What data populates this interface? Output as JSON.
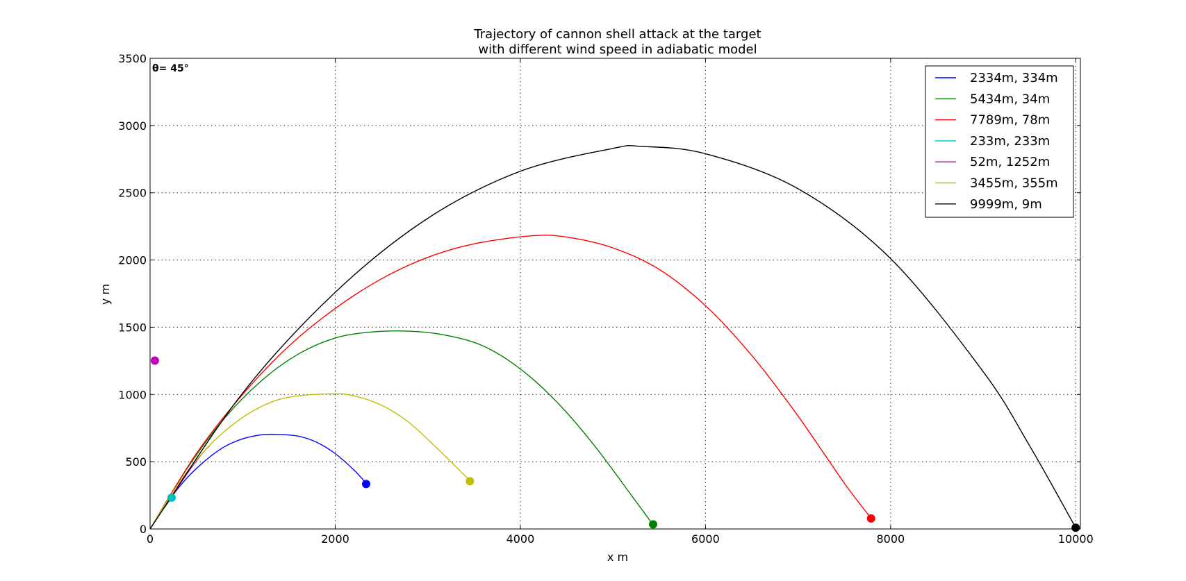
{
  "chart_data": {
    "type": "line",
    "title": [
      "Trajectory of cannon shell attack at the target",
      "with different wind speed in adiabatic model"
    ],
    "xlabel": "x m",
    "ylabel": "y m",
    "xlim": [
      0,
      10050
    ],
    "ylim": [
      0,
      3500
    ],
    "xticks": [
      0,
      2000,
      4000,
      6000,
      8000,
      10000
    ],
    "yticks": [
      0,
      500,
      1000,
      1500,
      2000,
      2500,
      3000,
      3500
    ],
    "grid": true,
    "legend_position": "top-right",
    "annotation": "θ= 45°",
    "series": [
      {
        "name": "2334m, 334m",
        "color": "#0000ff",
        "target": [
          2334,
          334
        ],
        "x": [
          0,
          200,
          400,
          600,
          800,
          1000,
          1200,
          1380,
          1600,
          1800,
          2000,
          2200,
          2334
        ],
        "y": [
          0,
          210,
          380,
          510,
          610,
          670,
          700,
          703,
          690,
          645,
          560,
          440,
          340
        ]
      },
      {
        "name": "5434m, 34m",
        "color": "#008000",
        "target": [
          5434,
          34
        ],
        "x": [
          0,
          400,
          800,
          1200,
          1600,
          2000,
          2400,
          2820,
          3200,
          3600,
          4000,
          4400,
          4800,
          5200,
          5434
        ],
        "y": [
          0,
          450,
          820,
          1100,
          1300,
          1420,
          1465,
          1470,
          1440,
          1360,
          1190,
          940,
          620,
          250,
          30
        ]
      },
      {
        "name": "7789m, 78m",
        "color": "#ff0000",
        "target": [
          7789,
          78
        ],
        "x": [
          0,
          500,
          1000,
          1500,
          2000,
          2500,
          3000,
          3500,
          4120,
          4500,
          5000,
          5500,
          6000,
          6500,
          7000,
          7500,
          7789
        ],
        "y": [
          0,
          560,
          1000,
          1360,
          1640,
          1860,
          2020,
          2120,
          2180,
          2170,
          2090,
          1930,
          1660,
          1290,
          840,
          340,
          80
        ]
      },
      {
        "name": "233m, 233m",
        "color": "#00bfbf",
        "target": [
          233,
          233
        ],
        "x": [
          0,
          100,
          233
        ],
        "y": [
          0,
          105,
          230
        ]
      },
      {
        "name": "52m, 1252m",
        "color": "#bf00bf",
        "target": [
          52,
          1252
        ],
        "x": [
          0,
          150,
          300,
          450,
          600,
          640
        ],
        "y": [
          0,
          160,
          310,
          460,
          590,
          615
        ]
      },
      {
        "name": "3455m, 355m",
        "color": "#bfbf00",
        "target": [
          3455,
          355
        ],
        "x": [
          0,
          300,
          600,
          900,
          1200,
          1500,
          1950,
          2200,
          2500,
          2800,
          3100,
          3455
        ],
        "y": [
          0,
          330,
          590,
          780,
          910,
          980,
          1005,
          990,
          920,
          790,
          600,
          360
        ]
      },
      {
        "name": "9999m, 9m",
        "color": "#000000",
        "target": [
          9999,
          9
        ],
        "x": [
          0,
          1000,
          2000,
          3000,
          4000,
          5000,
          5300,
          6000,
          7000,
          8000,
          9000,
          9500,
          9999
        ],
        "y": [
          0,
          1010,
          1760,
          2310,
          2660,
          2830,
          2845,
          2790,
          2530,
          2010,
          1170,
          620,
          10
        ]
      }
    ]
  }
}
